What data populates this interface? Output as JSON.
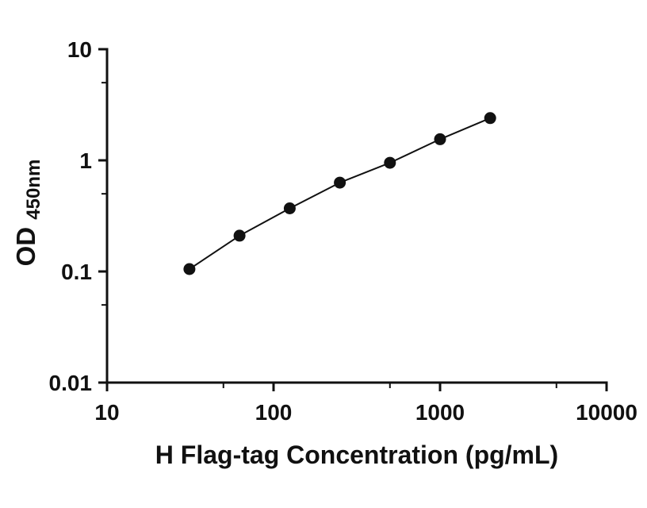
{
  "chart_data": {
    "type": "scatter",
    "line": true,
    "title": "",
    "xlabel": "H Flag-tag Concentration (pg/mL)",
    "ylabel": "OD",
    "ylabel_subscript": "450nm",
    "xscale": "log",
    "yscale": "log",
    "xlim": [
      10,
      10000
    ],
    "ylim": [
      0.01,
      10
    ],
    "x": [
      31.25,
      62.5,
      125,
      250,
      500,
      1000,
      2000
    ],
    "y": [
      0.105,
      0.21,
      0.37,
      0.63,
      0.95,
      1.55,
      2.4
    ],
    "x_ticks": [
      10,
      100,
      1000,
      10000
    ],
    "x_tick_labels": [
      "10",
      "100",
      "1000",
      "10000"
    ],
    "y_ticks": [
      0.01,
      0.1,
      1,
      10
    ],
    "y_tick_labels": [
      "0.01",
      "0.1",
      "1",
      "10"
    ],
    "x_minor_ticks": [
      50,
      500,
      5000
    ],
    "y_minor_ticks": [
      0.05,
      0.5,
      5
    ],
    "grid": false,
    "legend": null,
    "marker_color": "#111111",
    "line_color": "#111111",
    "axis_color": "#111111",
    "background_color": "#ffffff"
  }
}
